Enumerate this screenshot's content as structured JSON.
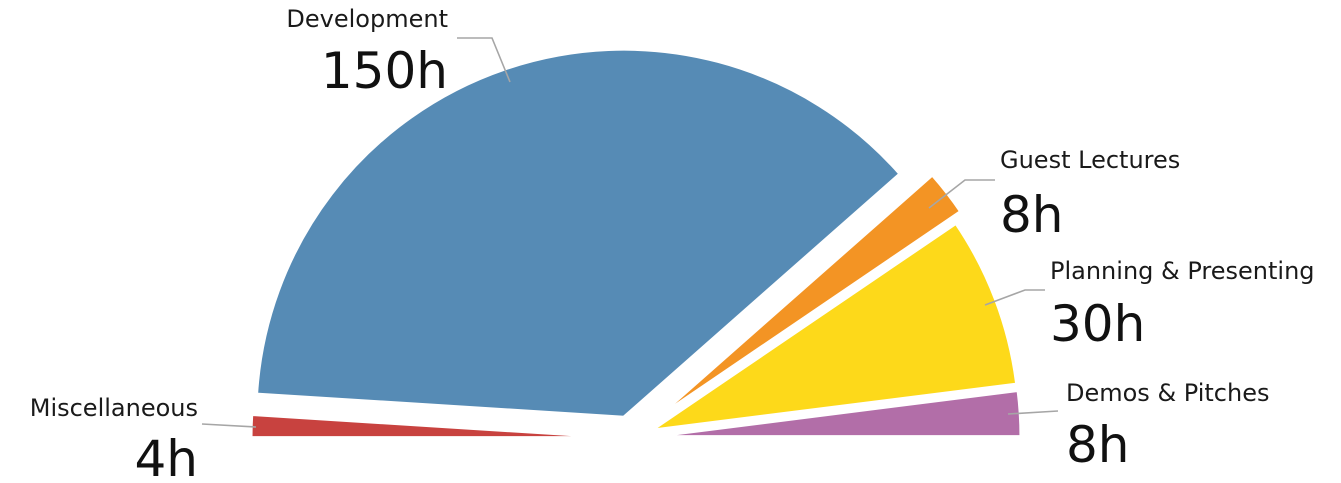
{
  "chart_data": {
    "type": "pie",
    "title": "",
    "unit": "h",
    "slices": [
      {
        "name": "Miscellaneous",
        "value": 4,
        "value_label": "4h",
        "color": "#c8423f"
      },
      {
        "name": "Development",
        "value": 150,
        "value_label": "150h",
        "color": "#568bb5"
      },
      {
        "name": "Guest Lectures",
        "value": 8,
        "value_label": "8h",
        "color": "#f39424"
      },
      {
        "name": "Planning & Presenting",
        "value": 30,
        "value_label": "30h",
        "color": "#fdd91a"
      },
      {
        "name": "Demos & Pitches",
        "value": 8,
        "value_label": "8h",
        "color": "#b26ea8"
      }
    ]
  }
}
